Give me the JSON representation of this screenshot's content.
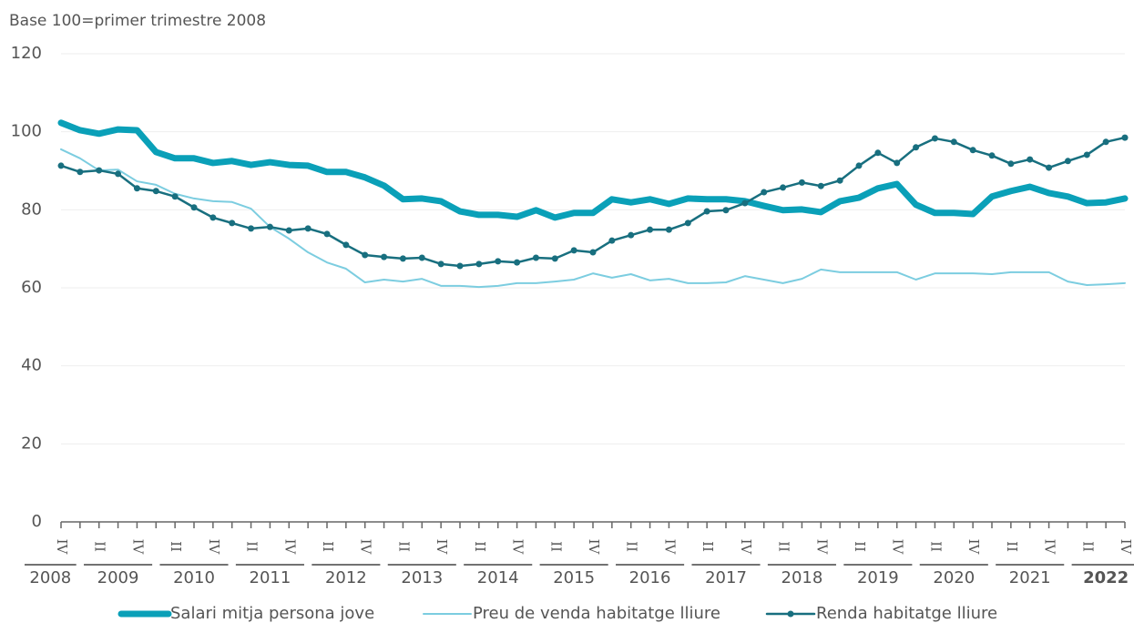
{
  "chart_data": {
    "type": "line",
    "subtitle": "Base 100=primer trimestre 2008",
    "categories": [
      "IV",
      null,
      "II",
      null,
      "IV",
      null,
      "II",
      null,
      "IV",
      null,
      "II",
      null,
      "IV",
      null,
      "II",
      null,
      "IV",
      null,
      "II",
      null,
      "IV",
      null,
      "II",
      null,
      "IV",
      null,
      "II",
      null,
      "IV",
      null,
      "II",
      null,
      "IV",
      null,
      "II",
      null,
      "IV",
      null,
      "II",
      null,
      "IV",
      null,
      "II",
      null,
      "IV",
      null,
      "II",
      null,
      "IV",
      null,
      "II",
      null,
      "IV",
      null,
      "II",
      null,
      "IV"
    ],
    "years": [
      "2008",
      "2009",
      "2010",
      "2011",
      "2012",
      "2013",
      "2014",
      "2015",
      "2016",
      "2017",
      "2018",
      "2019",
      "2020",
      "2021",
      "2022"
    ],
    "bold_last_year": true,
    "ylim": [
      0,
      120
    ],
    "yticks": [
      0,
      20,
      40,
      60,
      80,
      100,
      120
    ],
    "grid": true,
    "legend": "bottom",
    "series": [
      {
        "name": "Salari mitja persona jove",
        "color": "#0aa0b8",
        "width": 7,
        "markers": false,
        "values": [
          102.3,
          100.4,
          99.5,
          100.6,
          100.4,
          94.8,
          93.2,
          93.2,
          92.0,
          92.5,
          91.5,
          92.2,
          91.5,
          91.3,
          89.7,
          89.7,
          88.3,
          86.2,
          82.7,
          82.9,
          82.2,
          79.6,
          78.7,
          78.7,
          78.2,
          79.9,
          78.0,
          79.2,
          79.2,
          82.7,
          81.9,
          82.7,
          81.5,
          82.9,
          82.7,
          82.7,
          82.2,
          81.0,
          79.9,
          80.1,
          79.4,
          82.2,
          83.1,
          85.5,
          86.6,
          81.3,
          79.2,
          79.2,
          78.9,
          83.4,
          84.8,
          85.9,
          84.3,
          83.4,
          81.7,
          81.9,
          82.9
        ]
      },
      {
        "name": "Preu de venda habitatge lliure",
        "color": "#7ccde0",
        "width": 2,
        "markers": false,
        "values": [
          95.5,
          93.2,
          90.1,
          90.3,
          87.3,
          86.4,
          84.1,
          82.9,
          82.2,
          82.0,
          80.3,
          75.6,
          72.6,
          69.1,
          66.5,
          64.9,
          61.4,
          62.1,
          61.6,
          62.3,
          60.5,
          60.5,
          60.2,
          60.5,
          61.2,
          61.2,
          61.6,
          62.1,
          63.7,
          62.6,
          63.5,
          61.9,
          62.3,
          61.2,
          61.2,
          61.4,
          63.0,
          62.1,
          61.2,
          62.3,
          64.7,
          64.0,
          64.0,
          64.0,
          64.0,
          62.1,
          63.7,
          63.7,
          63.7,
          63.5,
          64.0,
          64.0,
          64.0,
          61.6,
          60.7,
          60.9,
          61.2
        ]
      },
      {
        "name": "Renda habitatge lliure",
        "color": "#186f7f",
        "width": 2.5,
        "markers": true,
        "values": [
          91.3,
          89.7,
          90.1,
          89.2,
          85.5,
          84.8,
          83.4,
          80.6,
          78.0,
          76.6,
          75.2,
          75.6,
          74.7,
          75.2,
          73.8,
          71.0,
          68.4,
          67.9,
          67.5,
          67.7,
          66.1,
          65.6,
          66.1,
          66.8,
          66.5,
          67.7,
          67.5,
          69.6,
          69.1,
          72.1,
          73.5,
          74.9,
          74.9,
          76.6,
          79.6,
          79.9,
          81.7,
          84.5,
          85.7,
          87.0,
          86.1,
          87.5,
          91.3,
          94.6,
          92.0,
          96.0,
          98.3,
          97.4,
          95.3,
          93.9,
          91.8,
          92.9,
          90.8,
          92.5,
          94.1,
          97.4,
          98.5
        ]
      }
    ]
  }
}
